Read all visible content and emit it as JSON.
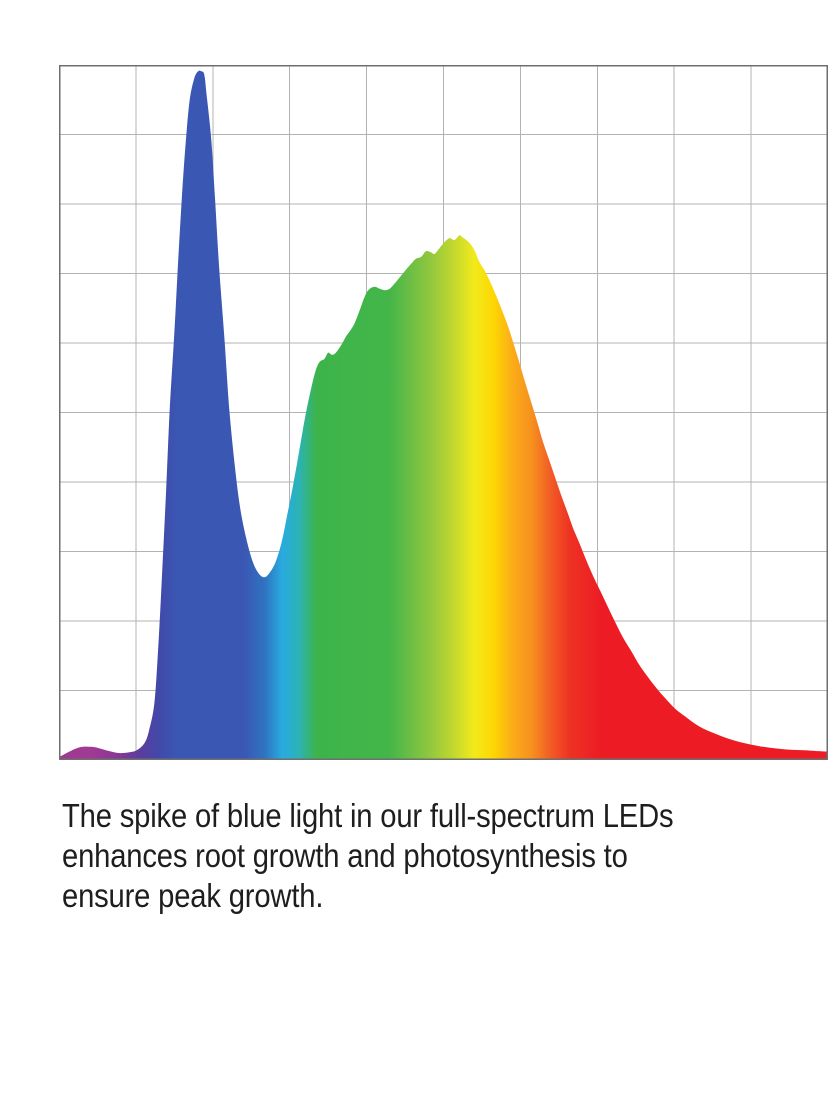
{
  "page": {
    "background": "#ffffff"
  },
  "chart": {
    "background": "#ffffff",
    "grid_line_color": "#b3b3b3",
    "border_color": "#6f6f6f"
  },
  "chart_data": {
    "type": "area",
    "title": "",
    "xlabel": "",
    "ylabel": "",
    "x_axis": {
      "tick_labels_visible": false,
      "range_normalized": [
        0,
        1
      ]
    },
    "y_axis": {
      "tick_labels_visible": false,
      "range_normalized": [
        0,
        1
      ]
    },
    "grid": {
      "visible": true,
      "cols": 10,
      "rows": 10
    },
    "legend": {
      "visible": false
    },
    "description": "Spectral power distribution of a full-spectrum LED: a tall narrow blue spike (~99% relative intensity) followed by a broad green-yellow-red hump (~75% peak) decaying into a long red tail; area filled with a horizontal visible-light rainbow gradient.",
    "series": [
      {
        "name": "relative-spectral-intensity",
        "points": [
          [
            0.0,
            0.004
          ],
          [
            0.01,
            0.01
          ],
          [
            0.021,
            0.016
          ],
          [
            0.031,
            0.019
          ],
          [
            0.042,
            0.019
          ],
          [
            0.052,
            0.017
          ],
          [
            0.065,
            0.013
          ],
          [
            0.078,
            0.01
          ],
          [
            0.091,
            0.011
          ],
          [
            0.101,
            0.014
          ],
          [
            0.111,
            0.024
          ],
          [
            0.117,
            0.042
          ],
          [
            0.124,
            0.082
          ],
          [
            0.129,
            0.161
          ],
          [
            0.134,
            0.266
          ],
          [
            0.139,
            0.381
          ],
          [
            0.144,
            0.504
          ],
          [
            0.15,
            0.614
          ],
          [
            0.155,
            0.719
          ],
          [
            0.16,
            0.813
          ],
          [
            0.165,
            0.892
          ],
          [
            0.17,
            0.95
          ],
          [
            0.176,
            0.981
          ],
          [
            0.181,
            0.991
          ],
          [
            0.185,
            0.991
          ],
          [
            0.189,
            0.986
          ],
          [
            0.192,
            0.957
          ],
          [
            0.198,
            0.892
          ],
          [
            0.203,
            0.806
          ],
          [
            0.208,
            0.712
          ],
          [
            0.215,
            0.609
          ],
          [
            0.221,
            0.511
          ],
          [
            0.228,
            0.43
          ],
          [
            0.235,
            0.367
          ],
          [
            0.243,
            0.321
          ],
          [
            0.252,
            0.285
          ],
          [
            0.26,
            0.268
          ],
          [
            0.267,
            0.263
          ],
          [
            0.273,
            0.268
          ],
          [
            0.281,
            0.283
          ],
          [
            0.289,
            0.311
          ],
          [
            0.296,
            0.348
          ],
          [
            0.304,
            0.393
          ],
          [
            0.312,
            0.442
          ],
          [
            0.32,
            0.493
          ],
          [
            0.328,
            0.535
          ],
          [
            0.334,
            0.561
          ],
          [
            0.339,
            0.573
          ],
          [
            0.345,
            0.577
          ],
          [
            0.35,
            0.586
          ],
          [
            0.355,
            0.583
          ],
          [
            0.36,
            0.586
          ],
          [
            0.367,
            0.597
          ],
          [
            0.373,
            0.609
          ],
          [
            0.38,
            0.62
          ],
          [
            0.385,
            0.63
          ],
          [
            0.391,
            0.647
          ],
          [
            0.398,
            0.668
          ],
          [
            0.404,
            0.678
          ],
          [
            0.411,
            0.681
          ],
          [
            0.417,
            0.678
          ],
          [
            0.424,
            0.676
          ],
          [
            0.43,
            0.678
          ],
          [
            0.436,
            0.685
          ],
          [
            0.442,
            0.693
          ],
          [
            0.45,
            0.704
          ],
          [
            0.458,
            0.714
          ],
          [
            0.464,
            0.721
          ],
          [
            0.471,
            0.724
          ],
          [
            0.477,
            0.732
          ],
          [
            0.483,
            0.731
          ],
          [
            0.488,
            0.728
          ],
          [
            0.493,
            0.734
          ],
          [
            0.498,
            0.741
          ],
          [
            0.503,
            0.747
          ],
          [
            0.508,
            0.751
          ],
          [
            0.514,
            0.748
          ],
          [
            0.518,
            0.752
          ],
          [
            0.521,
            0.755
          ],
          [
            0.525,
            0.752
          ],
          [
            0.531,
            0.747
          ],
          [
            0.536,
            0.741
          ],
          [
            0.541,
            0.732
          ],
          [
            0.546,
            0.718
          ],
          [
            0.553,
            0.705
          ],
          [
            0.559,
            0.692
          ],
          [
            0.567,
            0.672
          ],
          [
            0.575,
            0.65
          ],
          [
            0.583,
            0.627
          ],
          [
            0.59,
            0.603
          ],
          [
            0.598,
            0.574
          ],
          [
            0.606,
            0.544
          ],
          [
            0.614,
            0.515
          ],
          [
            0.622,
            0.486
          ],
          [
            0.629,
            0.459
          ],
          [
            0.637,
            0.433
          ],
          [
            0.645,
            0.407
          ],
          [
            0.653,
            0.381
          ],
          [
            0.661,
            0.357
          ],
          [
            0.668,
            0.335
          ],
          [
            0.676,
            0.314
          ],
          [
            0.685,
            0.289
          ],
          [
            0.694,
            0.266
          ],
          [
            0.704,
            0.243
          ],
          [
            0.713,
            0.222
          ],
          [
            0.723,
            0.199
          ],
          [
            0.733,
            0.177
          ],
          [
            0.744,
            0.157
          ],
          [
            0.754,
            0.138
          ],
          [
            0.766,
            0.119
          ],
          [
            0.778,
            0.102
          ],
          [
            0.789,
            0.088
          ],
          [
            0.802,
            0.073
          ],
          [
            0.815,
            0.062
          ],
          [
            0.83,
            0.05
          ],
          [
            0.844,
            0.042
          ],
          [
            0.86,
            0.035
          ],
          [
            0.875,
            0.029
          ],
          [
            0.892,
            0.024
          ],
          [
            0.91,
            0.02
          ],
          [
            0.93,
            0.017
          ],
          [
            0.949,
            0.015
          ],
          [
            0.969,
            0.014
          ],
          [
            0.984,
            0.013
          ],
          [
            1.0,
            0.012
          ]
        ]
      }
    ],
    "fill_gradient_stops": [
      {
        "offset": 0.0,
        "color": "#9B3A90"
      },
      {
        "offset": 0.04,
        "color": "#A23A92"
      },
      {
        "offset": 0.075,
        "color": "#8A3795"
      },
      {
        "offset": 0.105,
        "color": "#5C3D9E"
      },
      {
        "offset": 0.13,
        "color": "#4149A8"
      },
      {
        "offset": 0.155,
        "color": "#3B57B4"
      },
      {
        "offset": 0.24,
        "color": "#3A57B4"
      },
      {
        "offset": 0.268,
        "color": "#2F74C0"
      },
      {
        "offset": 0.29,
        "color": "#29AAE1"
      },
      {
        "offset": 0.312,
        "color": "#2BB3B5"
      },
      {
        "offset": 0.335,
        "color": "#3CB44A"
      },
      {
        "offset": 0.43,
        "color": "#44B649"
      },
      {
        "offset": 0.48,
        "color": "#8DC63F"
      },
      {
        "offset": 0.515,
        "color": "#C5D92D"
      },
      {
        "offset": 0.54,
        "color": "#F2EA1A"
      },
      {
        "offset": 0.565,
        "color": "#FDD704"
      },
      {
        "offset": 0.59,
        "color": "#FBAC18"
      },
      {
        "offset": 0.615,
        "color": "#F6901E"
      },
      {
        "offset": 0.64,
        "color": "#F15B25"
      },
      {
        "offset": 0.665,
        "color": "#EE3123"
      },
      {
        "offset": 0.705,
        "color": "#ED1C24"
      },
      {
        "offset": 1.0,
        "color": "#ED1C24"
      }
    ]
  },
  "caption": {
    "color": "#1e1e1e",
    "lines": [
      "The spike of blue light in our full-spectrum LEDs",
      "enhances root growth and photosynthesis to",
      "ensure peak growth."
    ]
  }
}
